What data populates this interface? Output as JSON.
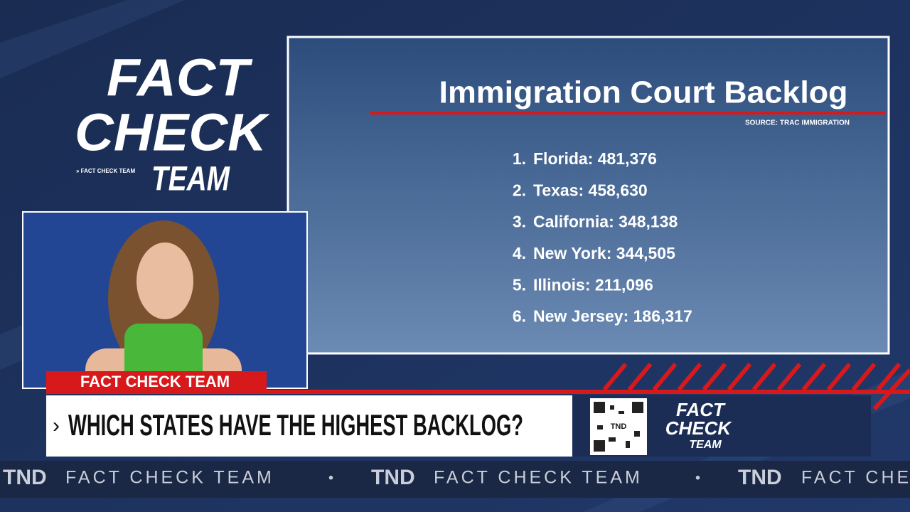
{
  "logo": {
    "line1": "FACT",
    "line2": "CHECK",
    "line3": "TEAM",
    "tagline": "» FACT CHECK TEAM"
  },
  "panel": {
    "title": "Immigration Court Backlog",
    "source": "SOURCE: TRAC IMMIGRATION",
    "items": [
      {
        "rank": "1.",
        "text": "Florida: 481,376"
      },
      {
        "rank": "2.",
        "text": "Texas: 458,630"
      },
      {
        "rank": "3.",
        "text": "California: 348,138"
      },
      {
        "rank": "4.",
        "text": "New York: 344,505"
      },
      {
        "rank": "5.",
        "text": "Illinois: 211,096"
      },
      {
        "rank": "6.",
        "text": "New Jersey: 186,317"
      }
    ]
  },
  "lower_third": {
    "tag": "FACT CHECK TEAM",
    "headline": "WHICH STATES HAVE THE HIGHEST BACKLOG?",
    "qr_label": "TND",
    "logo": {
      "line1": "FACT",
      "line2": "CHECK",
      "line3": "TEAM"
    }
  },
  "ticker": {
    "logo": "TND",
    "text": "FACT CHECK TEAM",
    "separator": "•"
  }
}
